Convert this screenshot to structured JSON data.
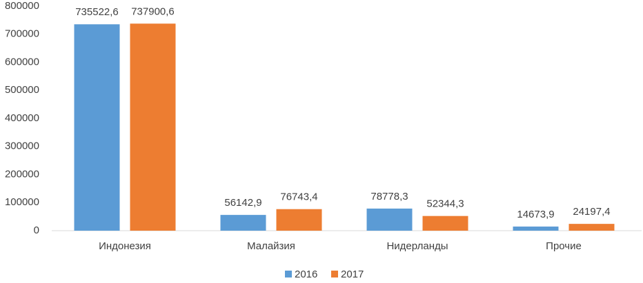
{
  "chart_data": {
    "type": "bar",
    "categories": [
      "Индонезия",
      "Малайзия",
      "Нидерланды",
      "Прочие"
    ],
    "series": [
      {
        "name": "2016",
        "color": "#5b9bd5",
        "values": [
          735522.6,
          56142.9,
          78778.3,
          14673.9
        ],
        "value_labels": [
          "735522,6",
          "56142,9",
          "78778,3",
          "14673,9"
        ]
      },
      {
        "name": "2017",
        "color": "#ed7d31",
        "values": [
          737900.6,
          76743.4,
          52344.3,
          24197.4
        ],
        "value_labels": [
          "737900,6",
          "76743,4",
          "52344,3",
          "24197,4"
        ]
      }
    ],
    "ylim": [
      0,
      800000
    ],
    "yticks": [
      0,
      100000,
      200000,
      300000,
      400000,
      500000,
      600000,
      700000,
      800000
    ],
    "grid": false,
    "legend": "bottom"
  }
}
